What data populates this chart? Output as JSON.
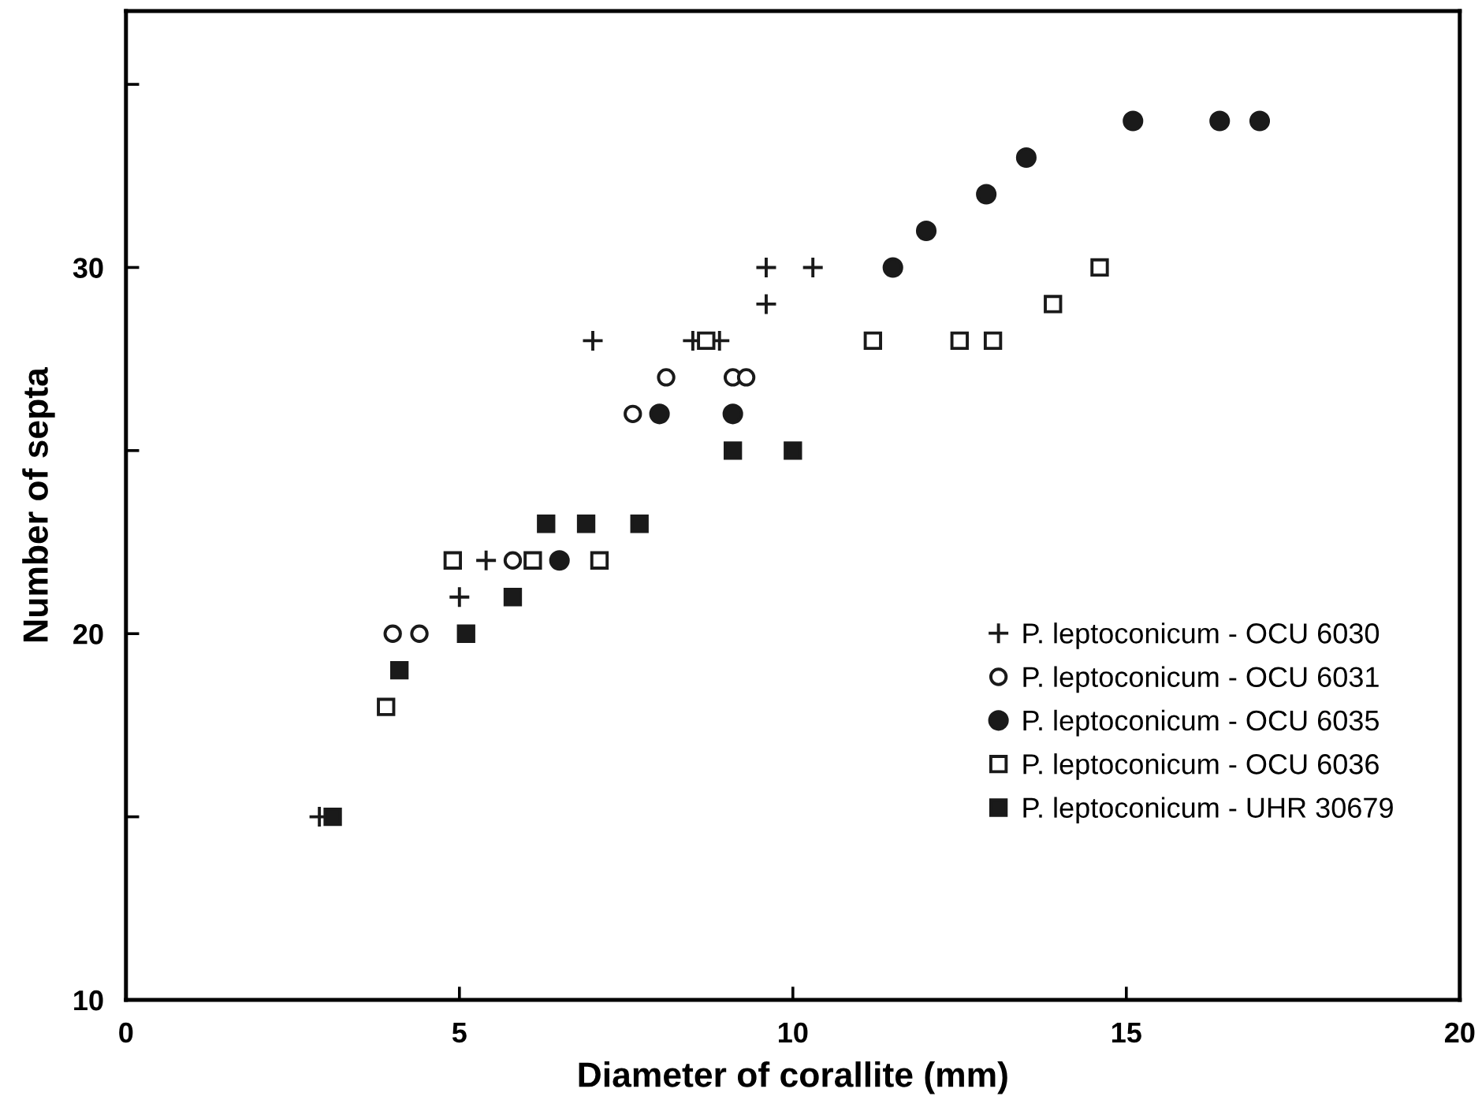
{
  "chart_data": {
    "type": "scatter",
    "xlabel": "Diameter of corallite (mm)",
    "ylabel": "Number of septa",
    "xlim": [
      0,
      20
    ],
    "xticks": [
      0,
      5,
      10,
      15,
      20
    ],
    "ylim": [
      10,
      37
    ],
    "yticks": [
      10,
      {
        "value": 15,
        "label": null
      },
      20,
      {
        "value": 25,
        "label": null
      },
      30,
      {
        "value": 35,
        "label": null
      }
    ],
    "grid": false,
    "legend": "right",
    "series": [
      {
        "name": "P. leptoconicum - OCU 6030",
        "color": "#1a1a1a",
        "marker": "cross",
        "x": [
          2.9,
          5.0,
          5.4,
          7.0,
          8.5,
          8.9,
          9.6,
          9.6,
          10.3
        ],
        "values": [
          15,
          21,
          22,
          28,
          28,
          28,
          29,
          30,
          30
        ]
      },
      {
        "name": "P. leptoconicum - OCU 6031",
        "color": "#1a1a1a",
        "marker": "circle_open",
        "x": [
          4.0,
          4.4,
          5.8,
          7.6,
          8.1,
          9.1,
          9.3
        ],
        "values": [
          20,
          20,
          22,
          26,
          27,
          27,
          27
        ]
      },
      {
        "name": "P. leptoconicum - OCU 6035",
        "color": "#1a1a1a",
        "marker": "circle",
        "x": [
          6.5,
          8.0,
          9.1,
          11.5,
          12.0,
          12.9,
          13.5,
          15.1,
          16.4,
          17.0
        ],
        "values": [
          22,
          26,
          26,
          30,
          31,
          32,
          33,
          34,
          34,
          34
        ]
      },
      {
        "name": "P. leptoconicum - OCU 6036",
        "color": "#1a1a1a",
        "marker": "square_open",
        "x": [
          3.9,
          4.9,
          6.1,
          7.1,
          8.7,
          11.2,
          12.5,
          13.0,
          13.9,
          14.6
        ],
        "values": [
          18,
          22,
          22,
          22,
          28,
          28,
          28,
          28,
          29,
          30
        ]
      },
      {
        "name": "P. leptoconicum - UHR 30679",
        "color": "#1a1a1a",
        "marker": "square",
        "x": [
          3.1,
          4.1,
          5.1,
          5.8,
          6.3,
          6.9,
          7.7,
          9.1,
          10.0
        ],
        "values": [
          15,
          19,
          20,
          21,
          23,
          23,
          23,
          25,
          25
        ]
      }
    ]
  }
}
